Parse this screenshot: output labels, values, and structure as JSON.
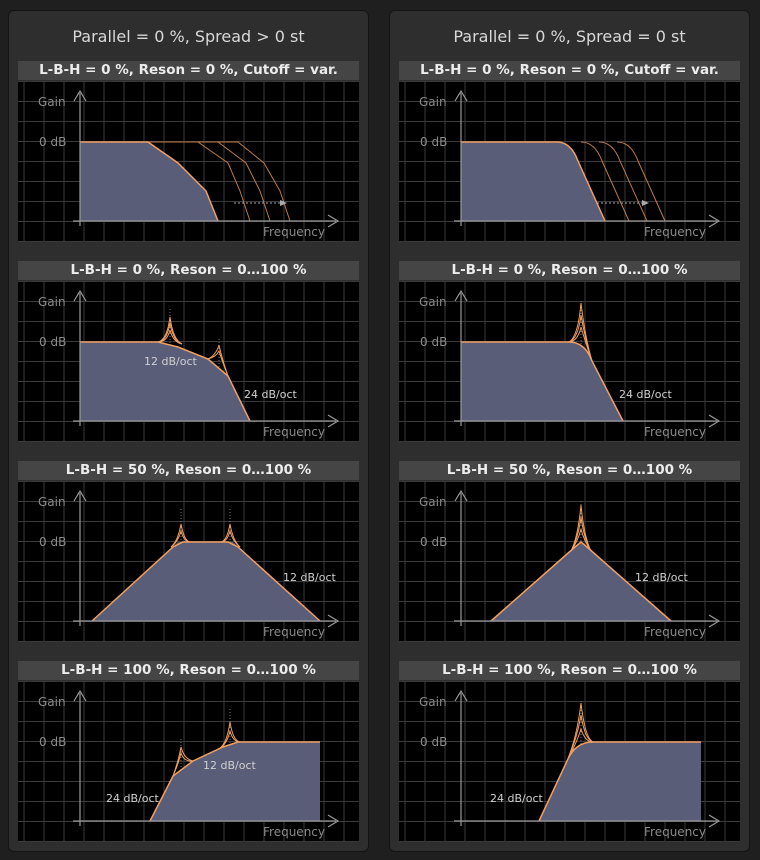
{
  "columns": [
    {
      "title": "Parallel = 0 %, Spread > 0 st",
      "panels": [
        {
          "title": "L-B-H = 0 %, Reson = 0 %, Cutoff = var.",
          "annotations": []
        },
        {
          "title": "L-B-H = 0 %, Reson = 0…100 %",
          "annotations": [
            "12 dB/oct",
            "24 dB/oct"
          ]
        },
        {
          "title": "L-B-H = 50 %, Reson = 0…100 %",
          "annotations": [
            "12 dB/oct"
          ]
        },
        {
          "title": "L-B-H = 100 %, Reson = 0…100 %",
          "annotations": [
            "12 dB/oct",
            "24 dB/oct"
          ]
        }
      ]
    },
    {
      "title": "Parallel = 0 %, Spread = 0 st",
      "panels": [
        {
          "title": "L-B-H = 0 %, Reson = 0 %, Cutoff = var.",
          "annotations": []
        },
        {
          "title": "L-B-H = 0 %, Reson = 0…100 %",
          "annotations": [
            "24 dB/oct"
          ]
        },
        {
          "title": "L-B-H = 50 %, Reson = 0…100 %",
          "annotations": [
            "12 dB/oct"
          ]
        },
        {
          "title": "L-B-H = 100 %, Reson = 0…100 %",
          "annotations": [
            "24 dB/oct"
          ]
        }
      ]
    }
  ],
  "axis": {
    "y_label": "Gain",
    "zero_label": "0 dB",
    "x_label": "Frequency"
  },
  "colors": {
    "fill": "#5a5d78",
    "curve": "#f0a060",
    "grid": "#3a3a3a",
    "axis": "#9a9a9a",
    "text": "#8a8a8a",
    "annotation": "#d0d0d0"
  }
}
